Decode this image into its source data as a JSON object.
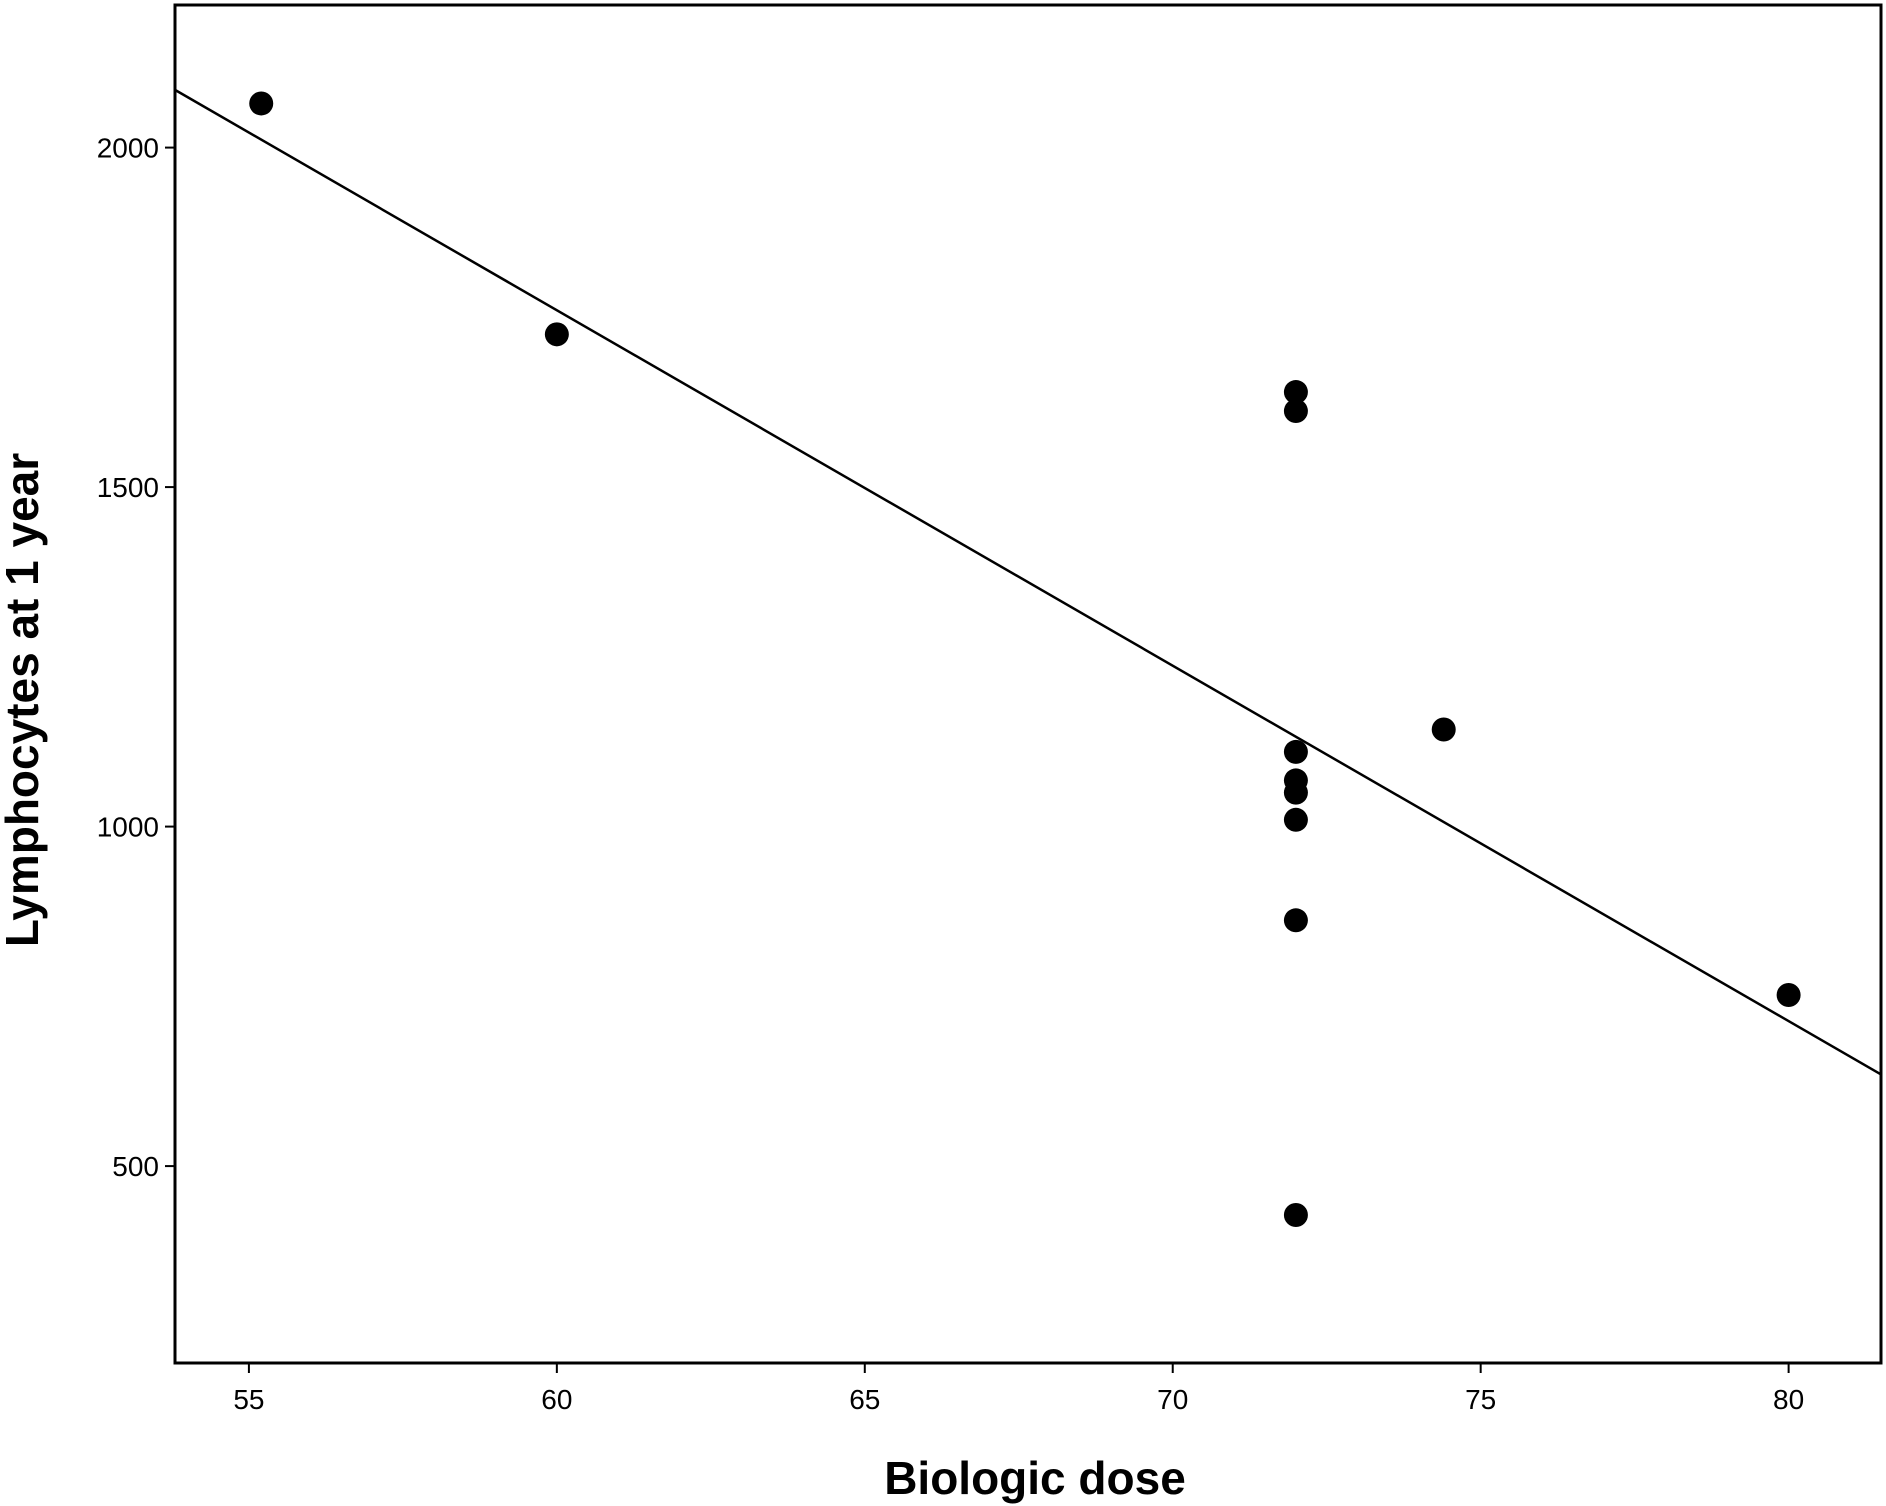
{
  "chart_data": {
    "type": "scatter",
    "title": "",
    "xlabel": "Biologic dose",
    "ylabel": "Lymphocytes at 1 year",
    "xlim": [
      53.8,
      81.5
    ],
    "ylim": [
      210,
      2210
    ],
    "xticks": [
      55,
      60,
      65,
      70,
      75,
      80
    ],
    "yticks": [
      500,
      1000,
      1500,
      2000
    ],
    "grid": false,
    "legend": "none",
    "point_color": "#000000",
    "series": [
      {
        "points": [
          {
            "x": 55.2,
            "y": 2065
          },
          {
            "x": 60.0,
            "y": 1725
          },
          {
            "x": 72.0,
            "y": 1640
          },
          {
            "x": 72.0,
            "y": 1612
          },
          {
            "x": 72.0,
            "y": 1110
          },
          {
            "x": 72.0,
            "y": 1068
          },
          {
            "x": 72.0,
            "y": 1050
          },
          {
            "x": 72.0,
            "y": 1010
          },
          {
            "x": 72.0,
            "y": 862
          },
          {
            "x": 72.0,
            "y": 428
          },
          {
            "x": 74.4,
            "y": 1143
          },
          {
            "x": 80.0,
            "y": 752
          }
        ]
      }
    ],
    "fit_line": {
      "x": [
        53.8,
        81.5
      ],
      "y": [
        2085,
        635
      ]
    }
  }
}
